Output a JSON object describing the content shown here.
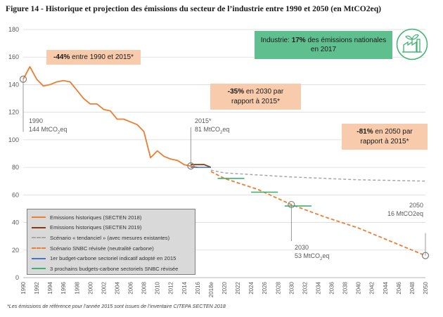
{
  "title": "Figure 14 - Historique et projection des émissions du secteur de l’industrie entre 1990 et 2050 (en MtCO2eq)",
  "footnote": "*Les émissions de référence pour l’année 2015 sont issues de l’inventaire CITEPA SECTEN 2018",
  "callouts": {
    "reduction_2015": {
      "bold": "-44%",
      "text": " entre 1990 et 2015*"
    },
    "reduction_2030": {
      "bold": "-35%",
      "text": " en 2030 par",
      "line2": "rapport à 2015*"
    },
    "reduction_2050": {
      "bold": "-81%",
      "text": " en 2050 par",
      "line2": "rapport à 2015*"
    },
    "industrie": {
      "prefix": "Industrie: ",
      "bold": "17%",
      "text": " des émissions nationales",
      "line2": "en 2017"
    }
  },
  "annotations": {
    "a1990": {
      "year": "1990",
      "value": "144 MtCO",
      "unit_sub": "2",
      "unit_end": "eq"
    },
    "a2015": {
      "year": "2015*",
      "value": "81 MtCO",
      "unit_sub": "2",
      "unit_end": "eq"
    },
    "a2030": {
      "year": "2030",
      "value": "53 MtCO",
      "unit_sub": "2",
      "unit_end": "eq"
    },
    "a2050": {
      "year": "2050",
      "value": "16 MtCO2eq"
    }
  },
  "colors": {
    "historic_2018": "#ed7d31",
    "historic_2019": "#843c0c",
    "trend": "#a6a6a6",
    "snbc": "#ed7d31",
    "budget_1": "#4472c4",
    "budget_snbc": "#3cb371",
    "grid": "#d9d9d9",
    "axis_text": "#595959"
  },
  "icon": "factory-leaf-icon",
  "chart_data": {
    "type": "line",
    "ylim": [
      0,
      180
    ],
    "yticks": [
      0,
      20,
      40,
      60,
      80,
      100,
      120,
      140,
      160,
      180
    ],
    "xlim": [
      1990,
      2050
    ],
    "xtick_labels": [
      "1990",
      "1992",
      "1994",
      "1996",
      "1998",
      "2000",
      "2002",
      "2004",
      "2006",
      "2008",
      "2010",
      "2012",
      "2014",
      "2016",
      "2018e",
      "2020",
      "2022",
      "2024",
      "2026",
      "2028",
      "2030",
      "2032",
      "2034",
      "2036",
      "2038",
      "2040",
      "2042",
      "2044",
      "2046",
      "2048",
      "2050"
    ],
    "grid": "horizontal",
    "legend_position": "bottom-left",
    "series": [
      {
        "name": "Emissions historiques (SECTEN 2018)",
        "style": "solid",
        "x": [
          1990,
          1991,
          1992,
          1993,
          1994,
          1995,
          1996,
          1997,
          1998,
          1999,
          2000,
          2001,
          2002,
          2003,
          2004,
          2005,
          2006,
          2007,
          2008,
          2009,
          2010,
          2011,
          2012,
          2013,
          2014,
          2015,
          2016
        ],
        "y": [
          144,
          153,
          144,
          139,
          140,
          142,
          143,
          142,
          136,
          130,
          126,
          126,
          122,
          121,
          115,
          115,
          113,
          111,
          106,
          87,
          92,
          88,
          86,
          85,
          82,
          81,
          80
        ]
      },
      {
        "name": "Emissions historiques (SECTEN 2019)",
        "style": "solid",
        "x": [
          2015,
          2016,
          2017,
          2018
        ],
        "y": [
          82,
          82,
          82,
          80
        ]
      },
      {
        "name": "Scénario « tendanciel » (avec mesures existantes)",
        "style": "dashed",
        "x": [
          2018,
          2020,
          2025,
          2030,
          2035,
          2040,
          2045,
          2050
        ],
        "y": [
          78,
          76,
          74.5,
          73,
          72,
          71,
          70.5,
          70
        ]
      },
      {
        "name": "Scénario SNBC révisée (neutralité carbone)",
        "style": "dashed",
        "x": [
          2018,
          2020,
          2025,
          2030,
          2035,
          2040,
          2045,
          2050
        ],
        "y": [
          77,
          72,
          64,
          53,
          44,
          36,
          26,
          16
        ]
      },
      {
        "name": "1er budget-carbone sectoriel indicatif adopté en 2015",
        "style": "segment",
        "x": [
          2015,
          2018
        ],
        "y": [
          80,
          80
        ]
      },
      {
        "name": "3 prochains budgets-carbone sectoriels SNBC révisée",
        "style": "segment",
        "segments": [
          {
            "x": [
              2019,
              2023
            ],
            "y": [
              72,
              72
            ]
          },
          {
            "x": [
              2024,
              2028
            ],
            "y": [
              62,
              62
            ]
          },
          {
            "x": [
              2029,
              2033
            ],
            "y": [
              52,
              52
            ]
          }
        ]
      }
    ],
    "markers": [
      {
        "x": 1990,
        "y": 144
      },
      {
        "x": 2015,
        "y": 81
      },
      {
        "x": 2030,
        "y": 53
      },
      {
        "x": 2050,
        "y": 16
      }
    ]
  }
}
